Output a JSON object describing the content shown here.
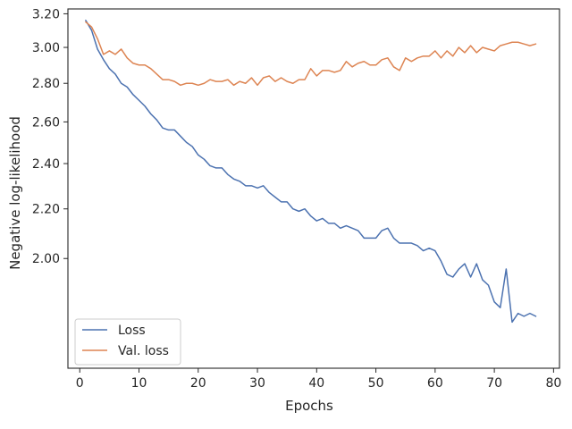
{
  "chart_data": {
    "type": "line",
    "title": "",
    "xlabel": "Epochs",
    "ylabel": "Negative log-likelihood",
    "xlim": [
      -2,
      81
    ],
    "ylim": [
      1.62,
      3.23
    ],
    "y_scale": "log",
    "grid": false,
    "legend_position": "lower-left",
    "x_ticks": [
      0,
      10,
      20,
      30,
      40,
      50,
      60,
      70,
      80
    ],
    "y_ticks": [
      {
        "value": 2.0,
        "label": "2.00"
      },
      {
        "value": 2.2,
        "label": "2.20"
      },
      {
        "value": 2.4,
        "label": "2.40"
      },
      {
        "value": 2.6,
        "label": "2.60"
      },
      {
        "value": 2.8,
        "label": "2.80"
      },
      {
        "value": 3.0,
        "label": "3.00"
      },
      {
        "value": 3.2,
        "label": "3.20"
      }
    ],
    "x": [
      1,
      2,
      3,
      4,
      5,
      6,
      7,
      8,
      9,
      10,
      11,
      12,
      13,
      14,
      15,
      16,
      17,
      18,
      19,
      20,
      21,
      22,
      23,
      24,
      25,
      26,
      27,
      28,
      29,
      30,
      31,
      32,
      33,
      34,
      35,
      36,
      37,
      38,
      39,
      40,
      41,
      42,
      43,
      44,
      45,
      46,
      47,
      48,
      49,
      50,
      51,
      52,
      53,
      54,
      55,
      56,
      57,
      58,
      59,
      60,
      61,
      62,
      63,
      64,
      65,
      66,
      67,
      68,
      69,
      70,
      71,
      72,
      73,
      74,
      75,
      76,
      77
    ],
    "series": [
      {
        "name": "Loss",
        "color": "#4c72b0",
        "values": [
          3.16,
          3.1,
          2.99,
          2.93,
          2.88,
          2.85,
          2.8,
          2.78,
          2.74,
          2.71,
          2.68,
          2.64,
          2.61,
          2.57,
          2.56,
          2.56,
          2.53,
          2.5,
          2.48,
          2.44,
          2.42,
          2.39,
          2.38,
          2.38,
          2.35,
          2.33,
          2.32,
          2.3,
          2.3,
          2.29,
          2.3,
          2.27,
          2.25,
          2.23,
          2.23,
          2.2,
          2.19,
          2.2,
          2.17,
          2.15,
          2.16,
          2.14,
          2.14,
          2.12,
          2.13,
          2.12,
          2.11,
          2.08,
          2.08,
          2.08,
          2.11,
          2.12,
          2.08,
          2.06,
          2.06,
          2.06,
          2.05,
          2.03,
          2.04,
          2.03,
          1.99,
          1.94,
          1.93,
          1.96,
          1.98,
          1.93,
          1.98,
          1.92,
          1.9,
          1.84,
          1.82,
          1.96,
          1.77,
          1.8,
          1.79,
          1.8,
          1.79
        ]
      },
      {
        "name": "Val. loss",
        "color": "#dd8452",
        "values": [
          3.15,
          3.12,
          3.05,
          2.96,
          2.98,
          2.96,
          2.99,
          2.94,
          2.91,
          2.9,
          2.9,
          2.88,
          2.85,
          2.82,
          2.82,
          2.81,
          2.79,
          2.8,
          2.8,
          2.79,
          2.8,
          2.82,
          2.81,
          2.81,
          2.82,
          2.79,
          2.81,
          2.8,
          2.83,
          2.79,
          2.83,
          2.84,
          2.81,
          2.83,
          2.81,
          2.8,
          2.82,
          2.82,
          2.88,
          2.84,
          2.87,
          2.87,
          2.86,
          2.87,
          2.92,
          2.89,
          2.91,
          2.92,
          2.9,
          2.9,
          2.93,
          2.94,
          2.89,
          2.87,
          2.94,
          2.92,
          2.94,
          2.95,
          2.95,
          2.98,
          2.94,
          2.98,
          2.95,
          3.0,
          2.97,
          3.01,
          2.97,
          3.0,
          2.99,
          2.98,
          3.01,
          3.02,
          3.03,
          3.03,
          3.02,
          3.01,
          3.02
        ]
      }
    ]
  }
}
